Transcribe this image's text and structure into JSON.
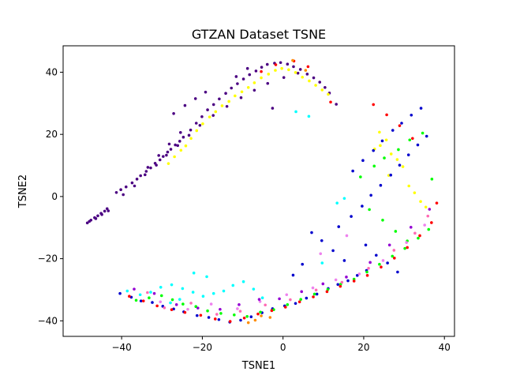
{
  "chart_data": {
    "type": "scatter",
    "title": "GTZAN Dataset TSNE",
    "xlabel": "TSNE1",
    "ylabel": "TSNE2",
    "xlim": [
      -54.5,
      42.5
    ],
    "ylim": [
      -45,
      48.5
    ],
    "xticks": [
      -40,
      -20,
      0,
      20,
      40
    ],
    "yticks": [
      -40,
      -20,
      0,
      20,
      40
    ],
    "xtick_labels": [
      "−40",
      "−20",
      "0",
      "20",
      "40"
    ],
    "ytick_labels": [
      "−40",
      "−20",
      "0",
      "20",
      "40"
    ],
    "grid": false,
    "legend": "none",
    "frame_color": "#000000",
    "background": "#ffffff",
    "series": [
      {
        "color": "#4b0082",
        "x": [
          -48.5,
          -47.6,
          -46.7,
          -45.9,
          -45.1,
          -44.2,
          -43.6,
          -48.0,
          -46.4,
          -44.9,
          -43.3,
          -41.3,
          -40.2,
          -38.9,
          -37.4,
          -36.2,
          -35.3,
          -33.9,
          -32.8,
          -31.7,
          -30.5,
          -29.7,
          -28.6,
          -27.8,
          -26.7,
          -25.6,
          -24.7,
          -22.9,
          -21.5,
          -20.1,
          -18.7,
          -17.2,
          -15.8,
          -14.2,
          -12.8,
          -11.3,
          -9.8,
          -8.3,
          -6.7,
          -5.3,
          -3.9,
          -2.1,
          -0.6,
          1.1,
          2.6,
          4.3,
          6.0,
          7.6,
          9.1,
          10.4,
          11.5,
          -39.6,
          -36.8,
          -34.2,
          -31.4,
          -28.9,
          -26.1,
          -23.3,
          -20.6,
          -17.3,
          -13.9,
          -10.4,
          -7.1,
          -3.8,
          0.2,
          3.7,
          -2.6,
          -25.4,
          -28.2,
          -30.8,
          -33.5,
          -27.1,
          -24.3,
          -21.7,
          -19.2,
          13.2,
          -11.6,
          -8.8
        ],
        "y": [
          -8.5,
          -7.6,
          -6.8,
          -6.2,
          -5.4,
          -4.7,
          -3.9,
          -8.0,
          -7.1,
          -5.8,
          -4.6,
          1.3,
          2.2,
          3.1,
          4.4,
          5.6,
          6.7,
          8.1,
          9.2,
          10.7,
          11.8,
          12.9,
          14.3,
          15.2,
          16.6,
          17.8,
          19.1,
          21.4,
          23.6,
          25.7,
          27.9,
          29.6,
          31.4,
          33.2,
          34.9,
          36.3,
          37.8,
          39.2,
          40.4,
          41.6,
          42.5,
          42.9,
          43.1,
          42.6,
          41.8,
          40.9,
          39.4,
          38.2,
          36.8,
          35.1,
          33.3,
          0.6,
          3.4,
          7.0,
          10.1,
          13.3,
          16.4,
          19.7,
          22.9,
          26.1,
          29.0,
          31.8,
          34.2,
          36.4,
          38.3,
          39.7,
          28.4,
          20.6,
          16.9,
          13.2,
          9.4,
          26.7,
          29.3,
          31.5,
          33.6,
          29.7,
          38.6,
          41.2
        ]
      },
      {
        "color": "#ffff00",
        "x": [
          -28.4,
          -26.9,
          -25.3,
          -24.1,
          -22.8,
          -21.4,
          -19.9,
          -18.2,
          -16.7,
          -15.1,
          -13.4,
          -11.9,
          -10.2,
          -8.6,
          -7.1,
          -5.4,
          -3.6,
          -1.9,
          -0.3,
          1.4,
          3.1,
          4.8,
          6.5,
          8.1,
          9.7,
          11.2,
          24.1,
          25.6,
          26.8,
          28.3,
          29.7,
          31.2,
          32.6,
          34.1,
          35.4,
          22.7,
          23.9,
          26.2
        ],
        "y": [
          10.6,
          12.8,
          14.9,
          16.3,
          18.7,
          21.2,
          23.4,
          25.6,
          27.3,
          29.2,
          30.6,
          32.4,
          33.7,
          35.1,
          36.6,
          38.2,
          39.4,
          40.6,
          41.2,
          40.8,
          39.9,
          38.4,
          37.2,
          35.8,
          34.3,
          32.9,
          16.4,
          18.2,
          13.7,
          11.9,
          9.6,
          3.4,
          1.2,
          -1.6,
          -3.4,
          15.3,
          20.7,
          6.8
        ]
      },
      {
        "color": "#0000cd",
        "x": [
          -40.4,
          -37.6,
          -35.2,
          -32.4,
          -29.8,
          -27.1,
          -24.6,
          -21.3,
          -18.4,
          -15.9,
          -13.2,
          -10.5,
          -7.9,
          -5.2,
          -2.6,
          0.4,
          3.1,
          5.8,
          8.4,
          11.2,
          13.6,
          16.1,
          18.4,
          20.7,
          15.2,
          12.4,
          9.6,
          7.1,
          4.8,
          2.5,
          13.8,
          16.9,
          19.6,
          21.8,
          24.2,
          26.7,
          28.9,
          31.1,
          33.4,
          35.6,
          17.3,
          19.8,
          22.4,
          24.6,
          27.2,
          29.4,
          31.8,
          34.2,
          20.5,
          23.1,
          25.9,
          28.4
        ],
        "y": [
          -31.2,
          -32.4,
          -33.6,
          -34.1,
          -35.3,
          -36.2,
          -37.1,
          -38.3,
          -38.9,
          -39.6,
          -40.4,
          -39.8,
          -38.7,
          -37.4,
          -36.1,
          -35.2,
          -34.4,
          -32.7,
          -31.4,
          -29.6,
          -28.3,
          -27.1,
          -25.4,
          -23.8,
          -20.6,
          -17.4,
          -14.2,
          -11.6,
          -21.8,
          -25.3,
          -9.7,
          -6.4,
          -3.1,
          0.4,
          3.6,
          6.9,
          10.1,
          13.4,
          16.6,
          19.4,
          8.2,
          11.6,
          14.8,
          17.9,
          21.3,
          23.6,
          26.2,
          28.4,
          -15.6,
          -18.9,
          -21.4,
          -24.3
        ]
      },
      {
        "color": "#00ff00",
        "x": [
          -36.4,
          -33.2,
          -30.1,
          -27.4,
          -24.8,
          -21.6,
          -18.7,
          -15.4,
          -12.1,
          -8.9,
          -5.6,
          -2.3,
          1.1,
          4.4,
          7.8,
          11.1,
          14.3,
          17.6,
          20.8,
          23.9,
          27.1,
          30.2,
          33.5,
          36.1,
          19.2,
          22.6,
          25.1,
          28.6,
          31.4,
          34.6,
          36.9,
          21.4,
          24.7,
          27.9,
          30.8
        ],
        "y": [
          -33.4,
          -32.6,
          -31.9,
          -33.2,
          -34.6,
          -35.4,
          -36.8,
          -37.6,
          -38.1,
          -38.6,
          -37.2,
          -36.4,
          -34.8,
          -33.1,
          -31.4,
          -29.9,
          -28.2,
          -26.6,
          -24.3,
          -21.8,
          -19.2,
          -16.7,
          -13.4,
          -10.6,
          6.3,
          9.8,
          12.4,
          15.1,
          18.2,
          20.4,
          5.6,
          -4.2,
          -7.6,
          -11.2,
          -14.3
        ]
      },
      {
        "color": "#00ffff",
        "x": [
          -38.6,
          -35.4,
          -32.8,
          -30.3,
          -27.6,
          -24.9,
          -22.3,
          -19.8,
          -17.2,
          -14.7,
          -12.4,
          -9.8,
          -7.3,
          -5.1,
          -27.9,
          -25.6,
          -22.1,
          -18.9,
          13.4,
          15.2,
          6.4,
          3.2,
          9.7
        ],
        "y": [
          -30.4,
          -31.6,
          -30.8,
          -29.2,
          -28.4,
          -29.6,
          -30.8,
          -32.1,
          -31.2,
          -30.4,
          -28.6,
          -27.4,
          -29.8,
          -32.6,
          -34.2,
          -33.1,
          -24.6,
          -25.8,
          -2.1,
          -0.6,
          25.8,
          27.3,
          -21.4
        ]
      },
      {
        "color": "#ff0000",
        "x": [
          -38.1,
          -34.6,
          -31.2,
          -27.6,
          -24.3,
          -20.4,
          -16.8,
          -13.1,
          -9.6,
          -6.2,
          -2.8,
          0.6,
          4.1,
          7.5,
          10.9,
          14.2,
          17.6,
          20.9,
          24.3,
          27.6,
          30.8,
          33.9,
          36.8,
          38.1,
          22.4,
          25.7,
          28.9,
          32.1,
          -5.4,
          -1.8,
          2.7,
          6.2,
          11.8
        ],
        "y": [
          -32.1,
          -33.6,
          -35.2,
          -36.4,
          -37.3,
          -38.2,
          -39.4,
          -40.2,
          -39.1,
          -37.8,
          -36.7,
          -35.6,
          -33.9,
          -32.3,
          -30.6,
          -28.9,
          -27.2,
          -25.4,
          -22.7,
          -19.8,
          -16.4,
          -12.6,
          -8.4,
          -2.1,
          29.6,
          26.3,
          22.8,
          18.7,
          40.2,
          42.4,
          43.6,
          41.8,
          30.4
        ]
      },
      {
        "color": "#ff8c00",
        "x": [
          -8.6,
          -6.9,
          -5.4,
          -3.2,
          2.4,
          5.6
        ],
        "y": [
          -40.6,
          -39.8,
          -38.4,
          -38.9,
          43.8,
          40.6
        ]
      },
      {
        "color": "#ff69b4",
        "x": [
          -33.6,
          -29.4,
          -22.8,
          -16.4,
          -10.6,
          -4.4,
          1.8,
          8.2,
          14.6,
          21.2,
          27.5,
          32.7,
          35.9
        ],
        "y": [
          -30.9,
          -35.8,
          -34.3,
          -37.9,
          -36.9,
          -34.9,
          -33.2,
          -30.1,
          -27.6,
          -23.1,
          -17.3,
          -11.8,
          -6.3
        ]
      },
      {
        "color": "#ee82ee",
        "x": [
          -30.4,
          -23.6,
          -17.8,
          -11.3,
          -5.7,
          0.9,
          7.4,
          13.1,
          18.9,
          24.8,
          30.6,
          35.1,
          15.8,
          9.3
        ],
        "y": [
          -33.9,
          -36.3,
          -34.6,
          -36.1,
          -33.8,
          -31.6,
          -29.4,
          -26.8,
          -24.9,
          -20.6,
          -14.8,
          -9.2,
          -12.6,
          -18.4
        ]
      },
      {
        "color": "#9400d3",
        "x": [
          -36.9,
          -31.9,
          -26.4,
          -21.1,
          -15.6,
          -10.9,
          -5.9,
          -0.9,
          4.6,
          9.9,
          15.7,
          21.6,
          26.4,
          31.7,
          36.3
        ],
        "y": [
          -29.8,
          -31.2,
          -34.8,
          -35.9,
          -36.3,
          -34.8,
          -33.1,
          -32.9,
          -30.6,
          -28.1,
          -25.9,
          -21.2,
          -15.6,
          -9.9,
          -4.1
        ]
      }
    ]
  }
}
